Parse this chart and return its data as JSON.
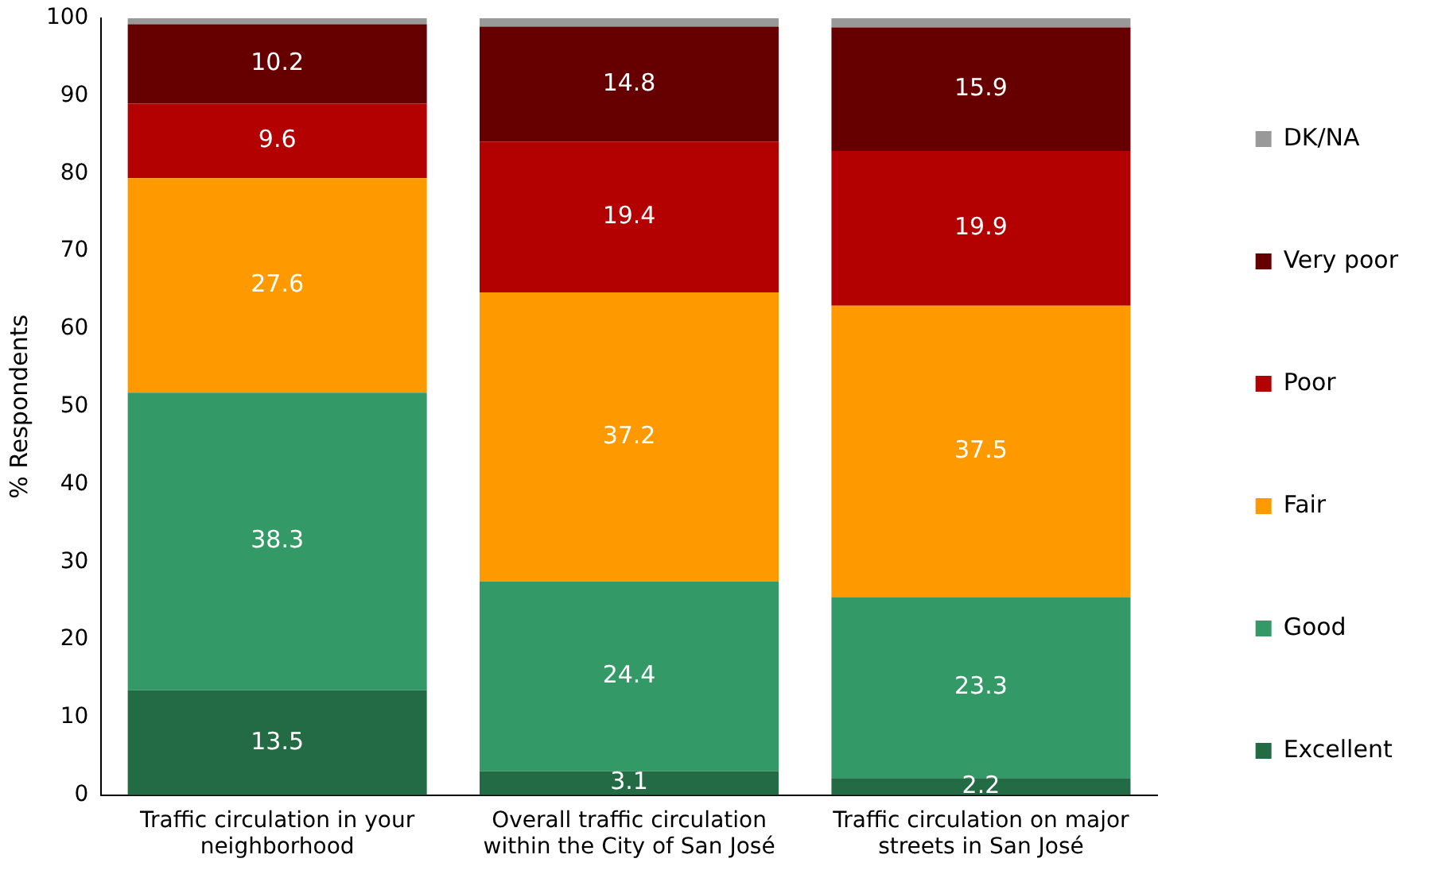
{
  "chart_data": {
    "type": "bar",
    "stacked": true,
    "ylabel": "% Respondents",
    "categories": [
      "Traffic circulation in your neighborhood",
      "Overall traffic circulation within the City of San José",
      "Traffic circulation on major streets in San José"
    ],
    "series": [
      {
        "name": "Excellent",
        "color": "#236b45",
        "values": [
          13.5,
          3.1,
          2.2
        ],
        "value_labels": [
          "13.5",
          "3.1",
          "2.2"
        ]
      },
      {
        "name": "Good",
        "color": "#339966",
        "values": [
          38.3,
          24.4,
          23.3
        ],
        "value_labels": [
          "38.3",
          "24.4",
          "23.3"
        ]
      },
      {
        "name": "Fair",
        "color": "#ff9900",
        "values": [
          27.6,
          37.2,
          37.5
        ],
        "value_labels": [
          "27.6",
          "37.2",
          "37.5"
        ]
      },
      {
        "name": "Poor",
        "color": "#b30000",
        "values": [
          9.6,
          19.4,
          19.9
        ],
        "value_labels": [
          "9.6",
          "19.4",
          "19.9"
        ]
      },
      {
        "name": "Very poor",
        "color": "#660000",
        "values": [
          10.2,
          14.8,
          15.9
        ],
        "value_labels": [
          "10.2",
          "14.8",
          "15.9"
        ]
      },
      {
        "name": "DK/NA",
        "color": "#999999",
        "values": [
          0.8,
          1.1,
          1.2
        ]
      }
    ],
    "ylim": [
      0,
      100
    ],
    "yticks": [
      0,
      10,
      20,
      30,
      40,
      50,
      60,
      70,
      80,
      90,
      100
    ],
    "grid": false,
    "legend": "right"
  }
}
